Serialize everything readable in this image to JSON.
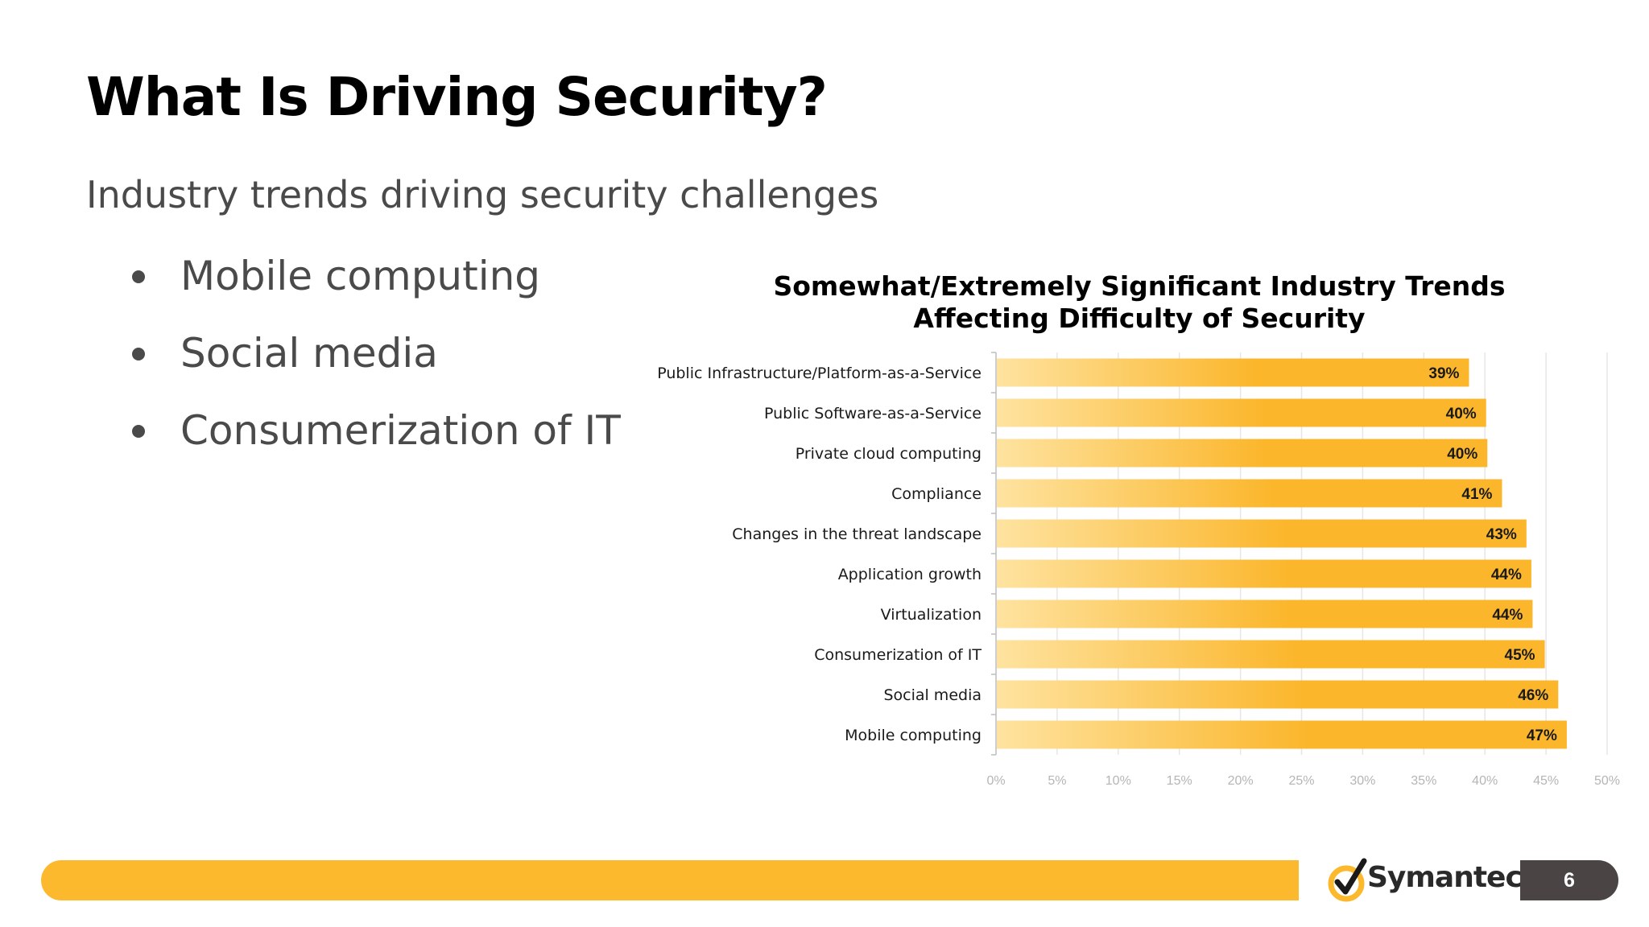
{
  "slide": {
    "title": "What Is Driving Security?",
    "subtitle": "Industry trends driving security challenges",
    "bullets": [
      "Mobile computing",
      "Social media",
      "Consumerization of IT"
    ],
    "page_number": "6"
  },
  "brand": {
    "name": "Symantec",
    "accent_color": "#fdb92e",
    "dark_color": "#4a4444"
  },
  "chart_data": {
    "type": "bar",
    "orientation": "horizontal",
    "title": "Somewhat/Extremely Significant Industry Trends Affecting Difficulty of Security",
    "title_lines": [
      "Somewhat/Extremely Significant Industry Trends",
      "Affecting Difficulty of Security"
    ],
    "categories": [
      "Public Infrastructure/Platform-as-a-Service",
      "Public Software-as-a-Service",
      "Private cloud computing",
      "Compliance",
      "Changes in the threat landscape",
      "Application growth",
      "Virtualization",
      "Consumerization of IT",
      "Social media",
      "Mobile computing"
    ],
    "values": [
      38.7,
      40.1,
      40.2,
      41.4,
      43.4,
      43.8,
      43.9,
      44.9,
      46.0,
      46.7
    ],
    "data_labels": [
      "39%",
      "40%",
      "40%",
      "41%",
      "43%",
      "44%",
      "44%",
      "45%",
      "46%",
      "47%"
    ],
    "xlim": [
      0,
      50
    ],
    "xticks": [
      0,
      5,
      10,
      15,
      20,
      25,
      30,
      35,
      40,
      45,
      50
    ],
    "xtick_labels": [
      "0%",
      "5%",
      "10%",
      "15%",
      "20%",
      "25%",
      "30%",
      "35%",
      "40%",
      "45%",
      "50%"
    ],
    "grid": true,
    "bar_gradient": [
      "#fee3a0",
      "#fbb62b"
    ]
  }
}
